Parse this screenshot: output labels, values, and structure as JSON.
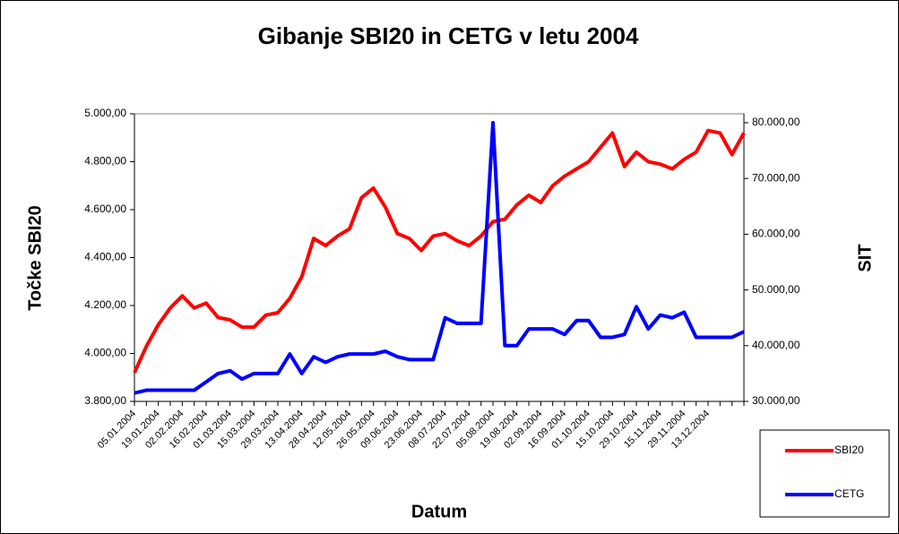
{
  "chart_data": {
    "type": "line",
    "title": "Gibanje SBI20 in CETG v letu 2004",
    "x_label": "Datum",
    "y_label": "Točke SBI20",
    "y2_label": "SIT",
    "legend": "bottom-right",
    "categories": [
      "05.01.2004",
      null,
      "19.01.2004",
      null,
      "02.02.2004",
      null,
      "16.02.2004",
      null,
      "01.03.2004",
      null,
      "15.03.2004",
      null,
      "29.03.2004",
      null,
      "13.04.2004",
      null,
      "28.04.2004",
      null,
      "12.05.2004",
      null,
      "26.05.2004",
      null,
      "09.06.2004",
      null,
      "23.06.2004",
      null,
      "08.07.2004",
      null,
      "22.07.2004",
      null,
      "05.08.2004",
      null,
      "19.08.2004",
      null,
      "02.09.2004",
      null,
      "16.09.2004",
      null,
      "01.10.2004",
      null,
      "15.10.2004",
      null,
      "29.10.2004",
      null,
      "15.11.2004",
      null,
      "29.11.2004",
      null,
      "13.12.2004",
      null,
      null,
      null
    ],
    "series": [
      {
        "name": "SBI20",
        "color": "#ff0000",
        "axis": "y",
        "values": [
          3920,
          4030,
          4120,
          4190,
          4240,
          4190,
          4210,
          4150,
          4140,
          4110,
          4110,
          4160,
          4170,
          4230,
          4320,
          4480,
          4450,
          4490,
          4520,
          4650,
          4690,
          4610,
          4500,
          4480,
          4430,
          4490,
          4500,
          4470,
          4450,
          4490,
          4550,
          4560,
          4620,
          4660,
          4630,
          4700,
          4740,
          4770,
          4800,
          4860,
          4920,
          4780,
          4840,
          4800,
          4790,
          4770,
          4810,
          4840,
          4930,
          4920,
          4830,
          4920
        ]
      },
      {
        "name": "CETG",
        "color": "#0000ff",
        "axis": "y2",
        "values": [
          31500,
          32000,
          32000,
          32000,
          32000,
          32000,
          33500,
          35000,
          35500,
          34000,
          35000,
          35000,
          35000,
          38500,
          35000,
          38000,
          37000,
          38000,
          38500,
          38500,
          38500,
          39000,
          38000,
          37500,
          37500,
          37500,
          45000,
          44000,
          44000,
          44000,
          80000,
          40000,
          40000,
          43000,
          43000,
          43000,
          42000,
          44500,
          44500,
          41500,
          41500,
          42000,
          47000,
          43000,
          45500,
          45000,
          46000,
          41500,
          41500,
          41500,
          41500,
          42500
        ]
      }
    ],
    "ylim": [
      3800,
      5000
    ],
    "yticks": [
      {
        "value": 3800,
        "label": "3.800,00"
      },
      {
        "value": 4000,
        "label": "4.000,00"
      },
      {
        "value": 4200,
        "label": "4.200,00"
      },
      {
        "value": 4400,
        "label": "4.400,00"
      },
      {
        "value": 4600,
        "label": "4.600,00"
      },
      {
        "value": 4800,
        "label": "4.800,00"
      },
      {
        "value": 5000,
        "label": "5.000,00"
      }
    ],
    "y2lim": [
      30000,
      81600
    ],
    "y2ticks": [
      {
        "value": 30000,
        "label": "30.000,00"
      },
      {
        "value": 40000,
        "label": "40.000,00"
      },
      {
        "value": 50000,
        "label": "50.000,00"
      },
      {
        "value": 60000,
        "label": "60.000,00"
      },
      {
        "value": 70000,
        "label": "70.000,00"
      },
      {
        "value": 80000,
        "label": "80.000,00"
      }
    ],
    "grid": false
  }
}
